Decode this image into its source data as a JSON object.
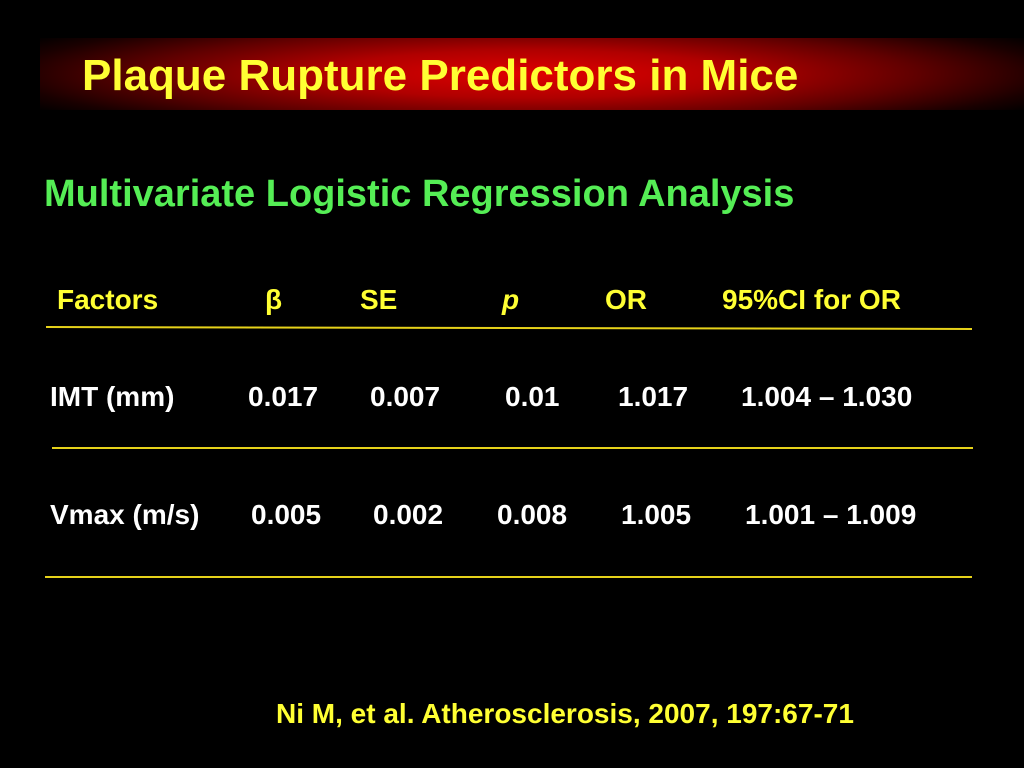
{
  "slide": {
    "title": "Plaque Rupture Predictors in Mice",
    "subtitle": "Multivariate Logistic Regression Analysis",
    "table": {
      "headers": [
        "Factors",
        "β",
        "SE",
        "p",
        "OR",
        "95%CI for OR"
      ],
      "rows": [
        [
          "IMT (mm)",
          "0.017",
          "0.007",
          "0.01",
          "1.017",
          "1.004 – 1.030"
        ],
        [
          "Vmax (m/s)",
          "0.005",
          "0.002",
          "0.008",
          "1.005",
          "1.001 – 1.009"
        ]
      ]
    },
    "citation": "Ni M, et al. Atherosclerosis, 2007, 197:67-71"
  },
  "colors": {
    "background": "#000000",
    "title": "#ffff33",
    "subtitle": "#55ee55",
    "header_text": "#ffff33",
    "body_text": "#ffffff",
    "rules": "#e6d21a",
    "title_band": "#e00000"
  }
}
